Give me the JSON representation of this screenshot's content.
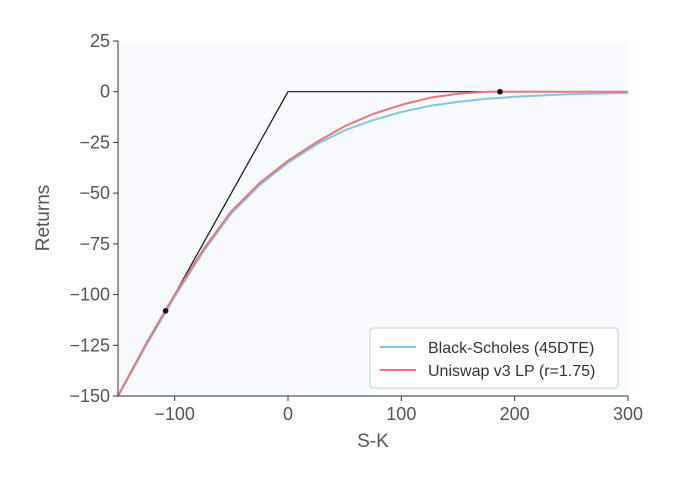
{
  "chart_data": {
    "type": "line",
    "xlabel": "S-K",
    "ylabel": "Returns",
    "xlim": [
      -150,
      300
    ],
    "ylim": [
      -150,
      25
    ],
    "xticks": [
      "−100",
      "0",
      "100",
      "200",
      "300"
    ],
    "yticks": [
      "25",
      "0",
      "−25",
      "−50",
      "−75",
      "−100",
      "−125",
      "−150"
    ],
    "grid": false,
    "legend_position": "lower-right",
    "series": [
      {
        "name": "Black-Scholes (45DTE)",
        "color": "#7ec8e3",
        "x": [
          -150,
          -125,
          -100,
          -75,
          -50,
          -25,
          0,
          25,
          50,
          75,
          100,
          125,
          150,
          175,
          200,
          250,
          300
        ],
        "y": [
          -150,
          -125,
          -101,
          -79,
          -60,
          -46,
          -35,
          -26,
          -19,
          -14,
          -10,
          -7,
          -5,
          -3.5,
          -2.5,
          -1.2,
          -0.6
        ]
      },
      {
        "name": "Uniswap v3 LP (r=1.75)",
        "color": "#e8767a",
        "x": [
          -150,
          -125,
          -100,
          -75,
          -50,
          -25,
          0,
          25,
          50,
          75,
          100,
          125,
          150,
          175,
          187,
          200,
          250,
          300
        ],
        "y": [
          -150,
          -124,
          -100,
          -78,
          -59,
          -45,
          -34,
          -25,
          -17,
          -11,
          -6.5,
          -3,
          -1,
          0,
          0,
          0,
          0,
          0
        ]
      },
      {
        "name": "",
        "color": "#111111",
        "x": [
          -150,
          0,
          300
        ],
        "y": [
          -150,
          0,
          0
        ]
      }
    ],
    "markers": [
      {
        "x": -108,
        "y": -108
      },
      {
        "x": 187,
        "y": 0
      }
    ]
  }
}
